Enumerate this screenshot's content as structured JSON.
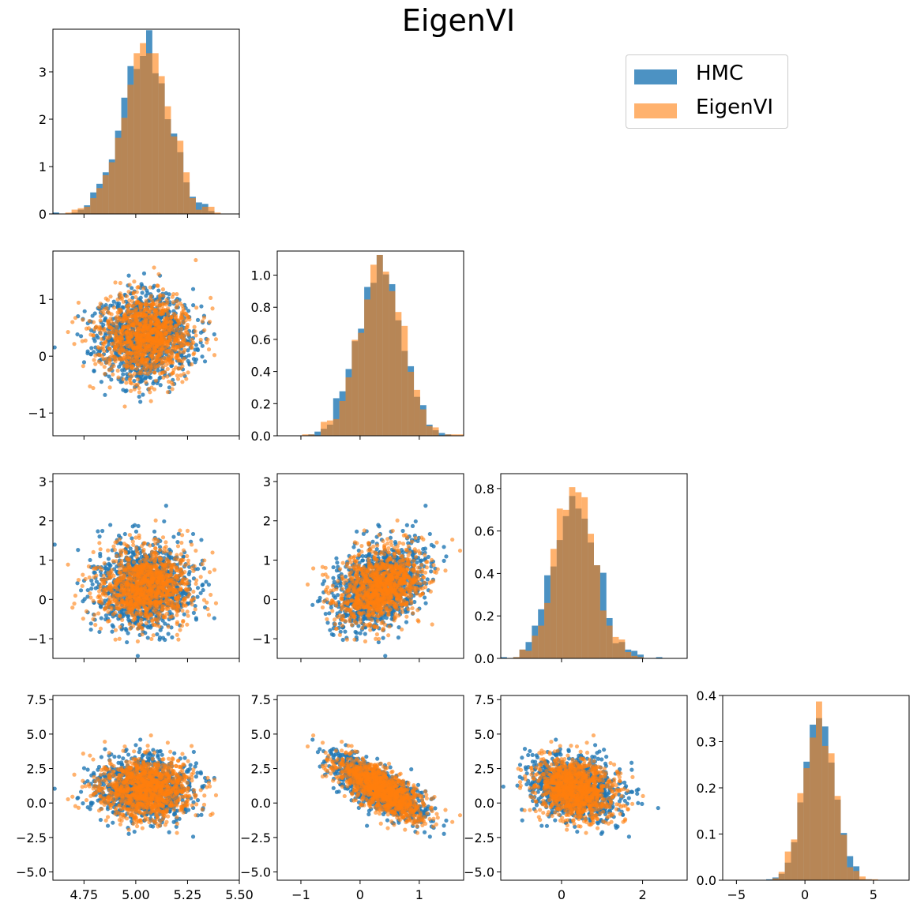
{
  "title": "EigenVI",
  "legend": {
    "items": [
      {
        "label": "HMC",
        "color": "#1f77b4"
      },
      {
        "label": "EigenVI",
        "color": "#ff7f0e"
      }
    ],
    "placement": "top-right"
  },
  "chart_data": {
    "type": "pairplot",
    "variables": 4,
    "series": [
      {
        "name": "HMC",
        "color": "#1f77b4",
        "opacity": 0.8
      },
      {
        "name": "EigenVI",
        "color": "#ff7f0e",
        "opacity": 0.6
      }
    ],
    "marginals": [
      {
        "mean": 5.05,
        "sd": 0.11,
        "x_range": [
          4.6,
          5.5
        ]
      },
      {
        "mean": 0.35,
        "sd": 0.37,
        "x_range": [
          -1.4,
          1.75
        ]
      },
      {
        "mean": 0.3,
        "sd": 0.5,
        "x_range": [
          -1.5,
          3.1
        ]
      },
      {
        "mean": 1.0,
        "sd": 1.1,
        "x_range": [
          -6,
          7.6
        ]
      }
    ],
    "correlation_pair_3_1": -0.75,
    "panels": [
      {
        "row": 0,
        "col": 0,
        "type": "histogram",
        "ylim": [
          0,
          3.9
        ],
        "yticks": [
          0,
          1,
          2,
          3
        ]
      },
      {
        "row": 1,
        "col": 0,
        "type": "scatter",
        "xlim": [
          4.6,
          5.5
        ],
        "ylim": [
          -1.4,
          1.85
        ],
        "yticks": [
          -1,
          0,
          1
        ]
      },
      {
        "row": 1,
        "col": 1,
        "type": "histogram",
        "xlim": [
          -1.4,
          1.75
        ],
        "ylim": [
          0,
          1.15
        ],
        "yticks": [
          0.0,
          0.2,
          0.4,
          0.6,
          0.8,
          1.0
        ]
      },
      {
        "row": 2,
        "col": 0,
        "type": "scatter",
        "xlim": [
          4.6,
          5.5
        ],
        "ylim": [
          -1.5,
          3.2
        ],
        "yticks": [
          -1,
          0,
          1,
          2,
          3
        ]
      },
      {
        "row": 2,
        "col": 1,
        "type": "scatter",
        "xlim": [
          -1.4,
          1.75
        ],
        "ylim": [
          -1.5,
          3.2
        ],
        "yticks": [
          -1,
          0,
          1,
          2,
          3
        ]
      },
      {
        "row": 2,
        "col": 2,
        "type": "histogram",
        "xlim": [
          -1.5,
          3.1
        ],
        "ylim": [
          0,
          0.87
        ],
        "yticks": [
          0.0,
          0.2,
          0.4,
          0.6,
          0.8
        ]
      },
      {
        "row": 3,
        "col": 0,
        "type": "scatter",
        "xlim": [
          4.6,
          5.5
        ],
        "ylim": [
          -5.6,
          7.8
        ],
        "yticks": [
          -5.0,
          -2.5,
          0.0,
          2.5,
          5.0,
          7.5
        ],
        "xticks": [
          4.75,
          5.0,
          5.25,
          5.5
        ]
      },
      {
        "row": 3,
        "col": 1,
        "type": "scatter",
        "xlim": [
          -1.4,
          1.75
        ],
        "ylim": [
          -5.6,
          7.8
        ],
        "yticks": [
          -5.0,
          -2.5,
          0.0,
          2.5,
          5.0,
          7.5
        ],
        "xticks": [
          -1,
          0,
          1
        ]
      },
      {
        "row": 3,
        "col": 2,
        "type": "scatter",
        "xlim": [
          -1.5,
          3.1
        ],
        "ylim": [
          -5.6,
          7.8
        ],
        "yticks": [
          -5.0,
          -2.5,
          0.0,
          2.5,
          5.0,
          7.5
        ],
        "xticks": [
          0,
          2
        ]
      },
      {
        "row": 3,
        "col": 3,
        "type": "histogram",
        "xlim": [
          -6,
          7.6
        ],
        "ylim": [
          0,
          0.4
        ],
        "yticks": [
          0.0,
          0.1,
          0.2,
          0.3,
          0.4
        ],
        "xticks": [
          -5,
          0,
          5
        ]
      }
    ],
    "tick_labels": {
      "x_col0": [
        "4.75",
        "5.00",
        "5.25",
        "5.50"
      ],
      "x_col1": [
        "−1",
        "0",
        "1"
      ],
      "x_col2": [
        "0",
        "2"
      ],
      "x_col3": [
        "−5",
        "0",
        "5"
      ]
    }
  }
}
